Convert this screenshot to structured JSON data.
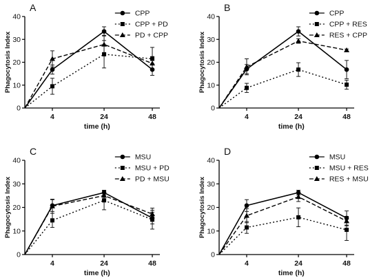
{
  "chart_data": [
    {
      "type": "line",
      "panel_letter": "A",
      "xlabel": "time (h)",
      "ylabel": "Phagocytosis Index",
      "ylim": [
        0,
        40
      ],
      "yticks": [
        0,
        10,
        20,
        30,
        40
      ],
      "x": [
        0,
        4,
        24,
        48
      ],
      "xticklabels": [
        "4",
        "24",
        "48"
      ],
      "grid": false,
      "legend": "top-right",
      "series": [
        {
          "name": "CPP",
          "marker": "circle",
          "dash": "solid",
          "values": [
            0,
            16.8,
            33.5,
            16.8
          ],
          "errors": [
            0,
            2.0,
            2.0,
            2.5
          ]
        },
        {
          "name": "CPP + PD",
          "marker": "square",
          "dash": "dotted",
          "values": [
            0,
            9.5,
            23.5,
            21.5
          ],
          "errors": [
            0,
            3.5,
            6.0,
            5.0
          ]
        },
        {
          "name": "PD + CPP",
          "marker": "triangle",
          "dash": "dashed",
          "values": [
            0,
            21.5,
            27.8,
            19.5
          ],
          "errors": [
            0,
            3.5,
            4.0,
            3.0
          ]
        }
      ]
    },
    {
      "type": "line",
      "panel_letter": "B",
      "xlabel": "time (h)",
      "ylabel": "Phagocytosis Index",
      "ylim": [
        0,
        40
      ],
      "yticks": [
        0,
        10,
        20,
        30,
        40
      ],
      "x": [
        0,
        4,
        24,
        48
      ],
      "xticklabels": [
        "4",
        "24",
        "48"
      ],
      "grid": false,
      "legend": "top-right",
      "series": [
        {
          "name": "CPP",
          "marker": "circle",
          "dash": "solid",
          "values": [
            0,
            17.0,
            33.5,
            16.8
          ],
          "errors": [
            0,
            2.0,
            2.0,
            4.0
          ]
        },
        {
          "name": "CPP + RES",
          "marker": "square",
          "dash": "dotted",
          "values": [
            0,
            8.8,
            16.8,
            10.2
          ],
          "errors": [
            0,
            2.0,
            3.0,
            2.0
          ]
        },
        {
          "name": "RES + CPP",
          "marker": "triangle",
          "dash": "dashed",
          "values": [
            0,
            18.0,
            29.3,
            25.3
          ],
          "errors": [
            0,
            3.5,
            1.0,
            0.5
          ]
        }
      ]
    },
    {
      "type": "line",
      "panel_letter": "C",
      "xlabel": "time (h)",
      "ylabel": "Phagocytosis Index",
      "ylim": [
        0,
        40
      ],
      "yticks": [
        0,
        10,
        20,
        30,
        40
      ],
      "x": [
        0,
        4,
        24,
        48
      ],
      "xticklabels": [
        "4",
        "24",
        "48"
      ],
      "grid": false,
      "legend": "top-right",
      "series": [
        {
          "name": "MSU",
          "marker": "circle",
          "dash": "solid",
          "values": [
            0,
            20.8,
            26.3,
            15.5
          ],
          "errors": [
            0,
            2.5,
            1.0,
            2.5
          ]
        },
        {
          "name": "MSU + PD",
          "marker": "square",
          "dash": "dotted",
          "values": [
            0,
            14.5,
            23.0,
            14.8
          ],
          "errors": [
            0,
            3.0,
            4.0,
            4.0
          ]
        },
        {
          "name": "PD + MSU",
          "marker": "triangle",
          "dash": "dashed",
          "values": [
            0,
            20.5,
            25.0,
            17.2
          ],
          "errors": [
            0,
            3.0,
            1.5,
            2.5
          ]
        }
      ]
    },
    {
      "type": "line",
      "panel_letter": "D",
      "xlabel": "time (h)",
      "ylabel": "Phagocytosis Index",
      "ylim": [
        0,
        40
      ],
      "yticks": [
        0,
        10,
        20,
        30,
        40
      ],
      "x": [
        0,
        4,
        24,
        48
      ],
      "xticklabels": [
        "4",
        "24",
        "48"
      ],
      "grid": false,
      "legend": "top-right",
      "series": [
        {
          "name": "MSU",
          "marker": "circle",
          "dash": "solid",
          "values": [
            0,
            20.8,
            26.3,
            15.5
          ],
          "errors": [
            0,
            2.5,
            1.0,
            3.0
          ]
        },
        {
          "name": "MSU + RES",
          "marker": "square",
          "dash": "dotted",
          "values": [
            0,
            11.5,
            15.8,
            10.5
          ],
          "errors": [
            0,
            2.5,
            4.0,
            4.5
          ]
        },
        {
          "name": "RES + MSU",
          "marker": "triangle",
          "dash": "dashed",
          "values": [
            0,
            16.5,
            24.5,
            14.2
          ],
          "errors": [
            0,
            3.0,
            2.0,
            2.0
          ]
        }
      ]
    }
  ]
}
